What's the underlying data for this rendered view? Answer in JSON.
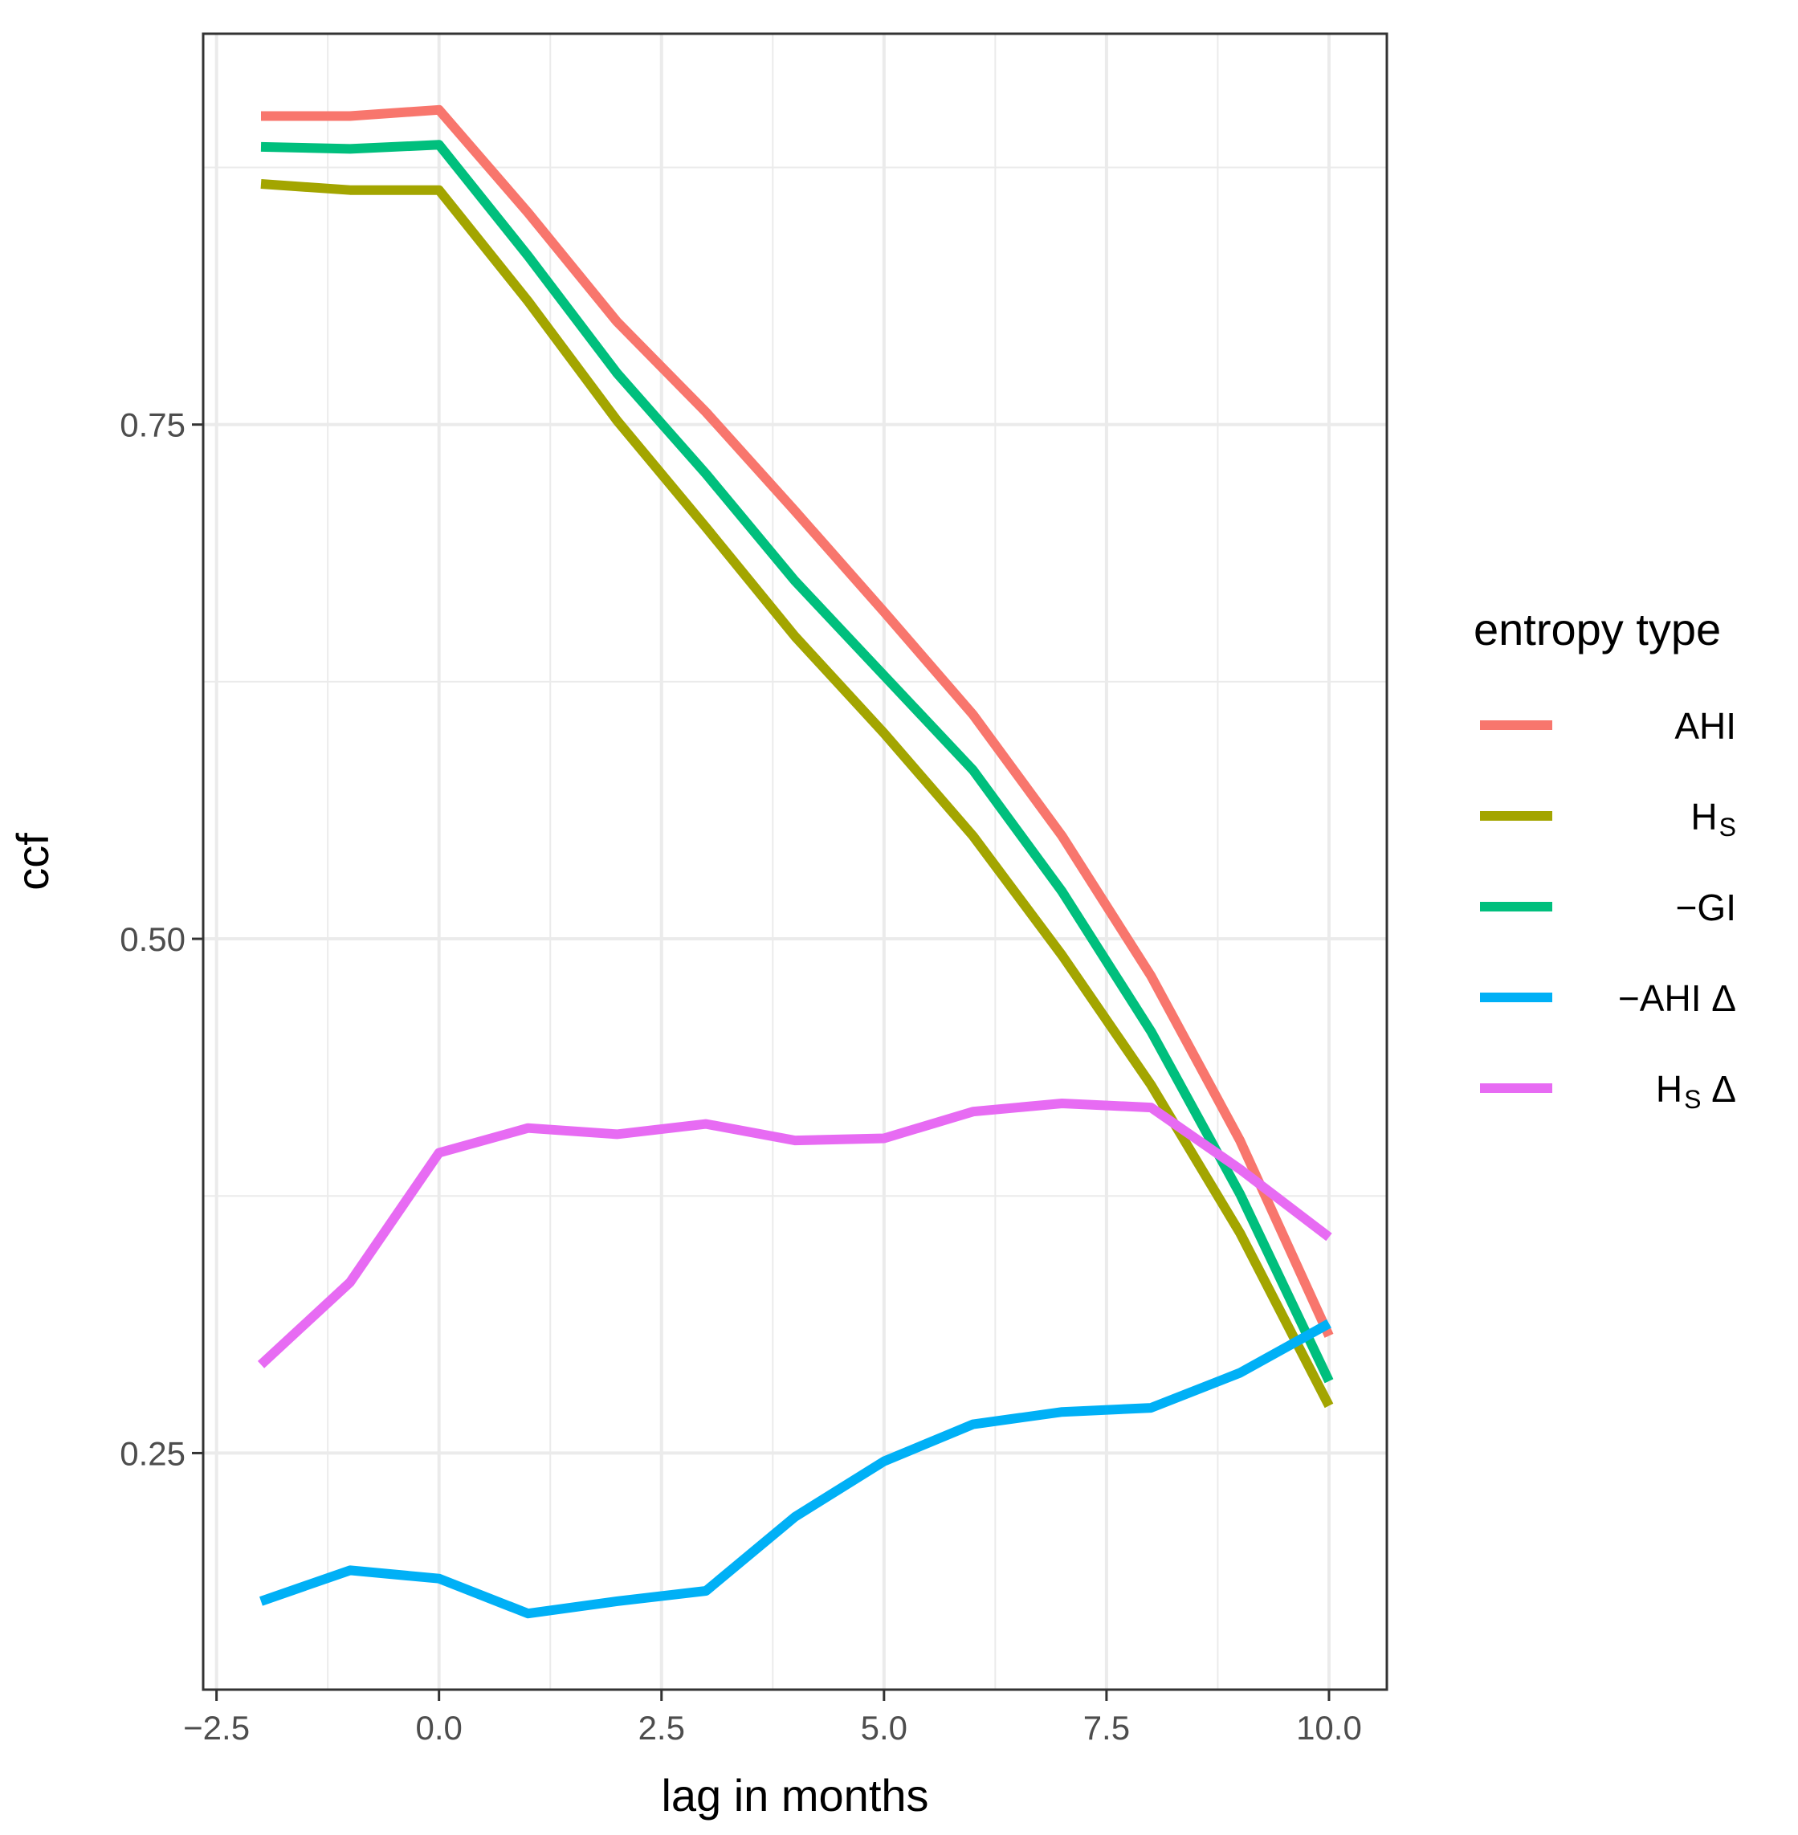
{
  "chart_data": {
    "type": "line",
    "title": "",
    "xlabel": "lag in months",
    "ylabel": "ccf",
    "xlim": [
      -2.65,
      10.65
    ],
    "ylim": [
      0.135,
      0.94
    ],
    "x_ticks": [
      -2.5,
      0.0,
      2.5,
      5.0,
      7.5,
      10.0
    ],
    "x_tick_labels": [
      "−2.5",
      "0.0",
      "2.5",
      "5.0",
      "7.5",
      "10.0"
    ],
    "x_minor_ticks": [
      -1.25,
      1.25,
      3.75,
      6.25,
      8.75
    ],
    "y_ticks": [
      0.25,
      0.5,
      0.75
    ],
    "y_tick_labels": [
      "0.25",
      "0.50",
      "0.75"
    ],
    "y_minor_ticks": [
      0.375,
      0.625,
      0.875
    ],
    "grid": true,
    "legend_position": "right",
    "legend_title": "entropy type",
    "x": [
      -2,
      -1,
      0,
      1,
      2,
      3,
      4,
      5,
      6,
      7,
      8,
      9,
      10
    ],
    "series": [
      {
        "name": "AHI",
        "legend_main": "AHI",
        "legend_sub": "",
        "legend_suffix": "",
        "color": "#F8766D",
        "values": [
          0.9,
          0.9,
          0.903,
          0.853,
          0.8,
          0.756,
          0.708,
          0.659,
          0.609,
          0.55,
          0.482,
          0.402,
          0.307
        ]
      },
      {
        "name": "HS",
        "legend_main": "H",
        "legend_sub": "S",
        "legend_suffix": "",
        "color": "#A3A500",
        "values": [
          0.867,
          0.864,
          0.864,
          0.81,
          0.752,
          0.7,
          0.647,
          0.6,
          0.55,
          0.492,
          0.429,
          0.357,
          0.273
        ]
      },
      {
        "name": "−GI",
        "legend_main": "−GI",
        "legend_sub": "",
        "legend_suffix": "",
        "color": "#00BF7D",
        "values": [
          0.885,
          0.884,
          0.886,
          0.832,
          0.775,
          0.726,
          0.674,
          0.628,
          0.582,
          0.523,
          0.455,
          0.376,
          0.285
        ]
      },
      {
        "name": "−AHI Δ",
        "legend_main": "−AHI",
        "legend_sub": "",
        "legend_suffix": " Δ",
        "color": "#00B0F6",
        "values": [
          0.178,
          0.193,
          0.189,
          0.172,
          0.178,
          0.183,
          0.219,
          0.246,
          0.264,
          0.27,
          0.272,
          0.289,
          0.313
        ]
      },
      {
        "name": "HS Δ",
        "legend_main": "H",
        "legend_sub": "S",
        "legend_suffix": " Δ",
        "color": "#E76BF3",
        "values": [
          0.293,
          0.333,
          0.396,
          0.408,
          0.405,
          0.41,
          0.402,
          0.403,
          0.416,
          0.42,
          0.418,
          0.388,
          0.355
        ]
      }
    ]
  }
}
